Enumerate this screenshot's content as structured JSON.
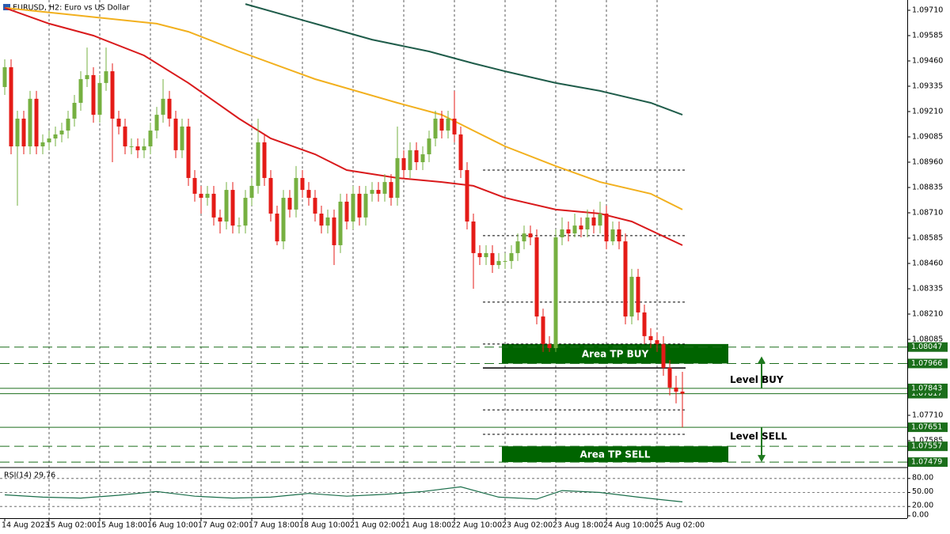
{
  "chart_data": {
    "type": "candlestick",
    "title": "EURUSD, H2:  Euro vs US Dollar",
    "xlim": [
      -0.75,
      142.5
    ],
    "xticks": [
      {
        "value": 0,
        "label": "14 Aug 2023"
      },
      {
        "value": 7,
        "label": "15 Aug 02:00"
      },
      {
        "value": 15,
        "label": "15 Aug 18:00"
      },
      {
        "value": 23,
        "label": "16 Aug 10:00"
      },
      {
        "value": 31,
        "label": "17 Aug 02:00"
      },
      {
        "value": 39,
        "label": "17 Aug 18:00"
      },
      {
        "value": 47,
        "label": "18 Aug 10:00"
      },
      {
        "value": 55,
        "label": "21 Aug 02:00"
      },
      {
        "value": 63,
        "label": "21 Aug 18:00"
      },
      {
        "value": 71,
        "label": "22 Aug 10:00"
      },
      {
        "value": 79,
        "label": "23 Aug 02:00"
      },
      {
        "value": 87,
        "label": "23 Aug 18:00"
      },
      {
        "value": 95,
        "label": "24 Aug 10:00"
      },
      {
        "value": 103,
        "label": "25 Aug 02:00"
      }
    ],
    "ylim": [
      1.07456,
      1.09753
    ],
    "yticks": [
      {
        "value": 1.0971,
        "label": "1.09710"
      },
      {
        "value": 1.09585,
        "label": "1.09585"
      },
      {
        "value": 1.0946,
        "label": "1.09460"
      },
      {
        "value": 1.09335,
        "label": "1.09335"
      },
      {
        "value": 1.0921,
        "label": "1.09210"
      },
      {
        "value": 1.09085,
        "label": "1.09085"
      },
      {
        "value": 1.0896,
        "label": "1.08960"
      },
      {
        "value": 1.08835,
        "label": "1.08835"
      },
      {
        "value": 1.0871,
        "label": "1.08710"
      },
      {
        "value": 1.08585,
        "label": "1.08585"
      },
      {
        "value": 1.0846,
        "label": "1.08460"
      },
      {
        "value": 1.08335,
        "label": "1.08335"
      },
      {
        "value": 1.0821,
        "label": "1.08210"
      },
      {
        "value": 1.08085,
        "label": "1.08085"
      },
      {
        "value": 1.0771,
        "label": "1.07710"
      },
      {
        "value": 1.07585,
        "label": "1.07585"
      }
    ],
    "up_color": "#76b041",
    "down_color": "#e41b17",
    "open": [
      1.09331,
      1.09429,
      1.09038,
      1.09175,
      1.09038,
      1.09273,
      1.09038,
      1.09058,
      1.09077,
      1.09097,
      1.09116,
      1.09175,
      1.09253,
      1.0937,
      1.0939,
      1.09194,
      1.09351,
      1.09409,
      1.09175,
      1.09136,
      1.09038,
      1.09038,
      1.09019,
      1.09038,
      1.09116,
      1.09194,
      1.09273,
      1.09175,
      1.09019,
      1.09136,
      1.08882,
      1.08804,
      1.08784,
      1.08804,
      1.08687,
      1.08667,
      1.08823,
      1.08647,
      1.08647,
      1.08784,
      1.08843,
      1.09058,
      1.08882,
      1.08706,
      1.08569,
      1.08784,
      1.08726,
      1.08882,
      1.08823,
      1.08784,
      1.08706,
      1.08647,
      1.08687,
      1.0855,
      1.08765,
      1.08667,
      1.08804,
      1.08687,
      1.08804,
      1.08823,
      1.08804,
      1.08862,
      1.08784,
      1.0898,
      1.08921,
      1.09019,
      1.0896,
      1.08999,
      1.09077,
      1.09175,
      1.09116,
      1.09175,
      1.09097,
      1.08921,
      1.08667,
      1.08511,
      1.08491,
      1.08511,
      1.08452,
      1.08472,
      1.08472,
      1.08511,
      1.08569,
      1.08608,
      1.08589,
      1.08198,
      1.08062,
      1.08042,
      1.08589,
      1.08628,
      1.08608,
      1.08647,
      1.08628,
      1.08687,
      1.08647,
      1.08706,
      1.08569,
      1.08628,
      1.08569,
      1.08198,
      1.08394,
      1.08218,
      1.08101,
      1.08081,
      1.08062,
      1.07944,
      1.07847,
      1.07827
    ],
    "high": [
      1.09468,
      1.09468,
      1.09214,
      1.09214,
      1.09312,
      1.09312,
      1.09097,
      1.09116,
      1.09136,
      1.09155,
      1.09214,
      1.09292,
      1.09409,
      1.09526,
      1.09429,
      1.0939,
      1.09526,
      1.09448,
      1.09214,
      1.09175,
      1.09077,
      1.09077,
      1.09077,
      1.09155,
      1.09233,
      1.0937,
      1.09312,
      1.09214,
      1.09175,
      1.09175,
      1.08921,
      1.08843,
      1.08843,
      1.08843,
      1.08726,
      1.08862,
      1.08862,
      1.08687,
      1.08823,
      1.08882,
      1.09175,
      1.09097,
      1.08921,
      1.08745,
      1.08823,
      1.08823,
      1.08941,
      1.08921,
      1.08862,
      1.08823,
      1.08745,
      1.08726,
      1.08726,
      1.08804,
      1.08804,
      1.08843,
      1.08843,
      1.08843,
      1.08862,
      1.08862,
      1.08901,
      1.08901,
      1.09136,
      1.09019,
      1.09058,
      1.09058,
      1.09038,
      1.09116,
      1.09214,
      1.09214,
      1.09214,
      1.09312,
      1.09136,
      1.0896,
      1.08706,
      1.0855,
      1.0855,
      1.0855,
      1.08511,
      1.08511,
      1.0855,
      1.08608,
      1.08647,
      1.08647,
      1.08628,
      1.08237,
      1.08101,
      1.08628,
      1.08687,
      1.08667,
      1.08706,
      1.08687,
      1.08726,
      1.08726,
      1.08765,
      1.08745,
      1.08667,
      1.08667,
      1.08608,
      1.08433,
      1.08433,
      1.08257,
      1.0814,
      1.0812,
      1.08101,
      1.07983,
      1.07905,
      1.07925
    ],
    "low": [
      1.09292,
      1.08999,
      1.08745,
      1.08999,
      1.08999,
      1.08999,
      1.08999,
      1.09019,
      1.09038,
      1.09058,
      1.09077,
      1.09136,
      1.09214,
      1.09331,
      1.09155,
      1.09155,
      1.09312,
      1.0896,
      1.09097,
      1.08999,
      1.08999,
      1.0898,
      1.0898,
      1.08999,
      1.09077,
      1.09155,
      1.09136,
      1.0898,
      1.0898,
      1.08843,
      1.08765,
      1.08706,
      1.08745,
      1.08647,
      1.08608,
      1.08628,
      1.08608,
      1.08608,
      1.08608,
      1.08745,
      1.08804,
      1.08843,
      1.08667,
      1.0855,
      1.0853,
      1.08687,
      1.08687,
      1.08784,
      1.08745,
      1.08667,
      1.08608,
      1.08608,
      1.08452,
      1.08511,
      1.08628,
      1.08628,
      1.08647,
      1.08647,
      1.08765,
      1.08765,
      1.08765,
      1.08745,
      1.08745,
      1.08882,
      1.08882,
      1.08921,
      1.08921,
      1.0896,
      1.09038,
      1.09077,
      1.09077,
      1.09058,
      1.08882,
      1.08628,
      1.08335,
      1.08452,
      1.08452,
      1.08413,
      1.08433,
      1.08433,
      1.08433,
      1.08472,
      1.0853,
      1.0855,
      1.08159,
      1.08023,
      1.08023,
      1.08023,
      1.0855,
      1.08569,
      1.08589,
      1.08589,
      1.08589,
      1.08608,
      1.08608,
      1.0853,
      1.0855,
      1.0853,
      1.08159,
      1.08159,
      1.08179,
      1.08062,
      1.08042,
      1.08023,
      1.07905,
      1.07808,
      1.07769,
      1.07651
    ],
    "close": [
      1.09429,
      1.09038,
      1.09175,
      1.09038,
      1.09273,
      1.09038,
      1.09058,
      1.09077,
      1.09097,
      1.09116,
      1.09175,
      1.09253,
      1.0937,
      1.0939,
      1.09194,
      1.09351,
      1.09409,
      1.09175,
      1.09136,
      1.09038,
      1.09038,
      1.09019,
      1.09038,
      1.09116,
      1.09194,
      1.09273,
      1.09175,
      1.09019,
      1.09136,
      1.08882,
      1.08804,
      1.08784,
      1.08804,
      1.08687,
      1.08667,
      1.08823,
      1.08647,
      1.08647,
      1.08784,
      1.08843,
      1.09058,
      1.08882,
      1.08706,
      1.08569,
      1.08784,
      1.08726,
      1.08882,
      1.08823,
      1.08784,
      1.08706,
      1.08647,
      1.08687,
      1.0855,
      1.08765,
      1.08667,
      1.08804,
      1.08687,
      1.08804,
      1.08823,
      1.08804,
      1.08862,
      1.08784,
      1.0898,
      1.08921,
      1.09019,
      1.0896,
      1.08999,
      1.09077,
      1.09175,
      1.09116,
      1.09175,
      1.09097,
      1.08921,
      1.08667,
      1.08511,
      1.08491,
      1.08511,
      1.08452,
      1.08472,
      1.08472,
      1.08511,
      1.08569,
      1.08608,
      1.08589,
      1.08198,
      1.08062,
      1.08042,
      1.08589,
      1.08628,
      1.08608,
      1.08647,
      1.08628,
      1.08687,
      1.08647,
      1.08706,
      1.08569,
      1.08628,
      1.08569,
      1.08198,
      1.08394,
      1.08218,
      1.08101,
      1.08081,
      1.08062,
      1.07944,
      1.07847,
      1.07827,
      1.07817
    ],
    "series": [
      {
        "color": "#1f5c4a",
        "x": [
          38,
          49,
          58,
          67,
          74,
          79,
          87,
          94,
          102,
          107
        ],
        "values": [
          1.09741,
          1.09644,
          1.09565,
          1.09507,
          1.09448,
          1.09409,
          1.09351,
          1.09312,
          1.09253,
          1.09194
        ]
      },
      {
        "color": "#f2b01e",
        "x": [
          0,
          12,
          24,
          29,
          37,
          49,
          62,
          69,
          74,
          79,
          87,
          94,
          102,
          107
        ],
        "values": [
          1.09722,
          1.09683,
          1.09644,
          1.09604,
          1.09507,
          1.0937,
          1.09253,
          1.09194,
          1.09116,
          1.09038,
          1.08941,
          1.08862,
          1.08804,
          1.08726
        ]
      },
      {
        "color": "#d91a1c",
        "x": [
          0,
          7,
          14,
          22,
          29,
          37,
          42,
          49,
          54,
          62,
          69,
          74,
          79,
          87,
          94,
          99,
          107
        ],
        "values": [
          1.09722,
          1.09644,
          1.09585,
          1.09487,
          1.09351,
          1.09175,
          1.09077,
          1.08999,
          1.08921,
          1.08882,
          1.08862,
          1.08843,
          1.08784,
          1.08726,
          1.08706,
          1.08667,
          1.0855
        ]
      }
    ],
    "levels": [
      {
        "value": 1.08047,
        "style": "dashed"
      },
      {
        "value": 1.07966,
        "style": "dashed"
      },
      {
        "value": 1.07817,
        "style": "solid"
      },
      {
        "value": 1.07843,
        "style": "solid"
      },
      {
        "value": 1.07651,
        "style": "solid"
      },
      {
        "value": 1.07557,
        "style": "dashed"
      },
      {
        "value": 1.07479,
        "style": "dashed"
      }
    ],
    "level_color": "#1b6e1b",
    "short_levels_x": [
      75.5,
      107.5
    ],
    "short_levels": [
      {
        "value": 1.08921,
        "style": "dotted"
      },
      {
        "value": 1.08597,
        "style": "dotted"
      },
      {
        "value": 1.08269,
        "style": "dotted"
      },
      {
        "value": 1.08062,
        "style": "dotted"
      },
      {
        "value": 1.07944,
        "style": "solid"
      },
      {
        "value": 1.07737,
        "style": "dotted"
      },
      {
        "value": 1.07616,
        "style": "dotted"
      }
    ],
    "zones": [
      {
        "label": "Area TP BUY",
        "range": [
          1.08062,
          1.07966
        ],
        "x_range": [
          78.5,
          114.25
        ],
        "color": "#006400"
      },
      {
        "label": "Area TP SELL",
        "range": [
          1.07557,
          1.07479
        ],
        "x_range": [
          78.5,
          114.25
        ],
        "color": "#006400"
      }
    ],
    "annotations": [
      {
        "text": "Level BUY",
        "arrow": [
          1.07843,
          1.08001
        ]
      },
      {
        "text": "Level SELL",
        "arrow": [
          1.07651,
          1.07479
        ]
      }
    ],
    "annotation_color": "#1e7a1e",
    "rsi": {
      "title": "RSI(14) 29.76",
      "ylim": [
        0,
        100
      ],
      "yticks": [
        {
          "value": 80,
          "label": "80.00"
        },
        {
          "value": 50,
          "label": "50.00"
        },
        {
          "value": 20,
          "label": "20.00"
        },
        {
          "value": 0,
          "label": "0.00"
        }
      ],
      "levels": [
        80,
        50,
        20
      ],
      "color": "#1a6e4a",
      "x": [
        0,
        6,
        12,
        18,
        24,
        30,
        36,
        42,
        48,
        54,
        60,
        66,
        72,
        78,
        84,
        88,
        94,
        100,
        104,
        107
      ],
      "values": [
        45,
        40,
        38,
        44,
        52,
        42,
        38,
        40,
        48,
        42,
        46,
        52,
        62,
        40,
        36,
        54,
        50,
        40,
        34,
        29.76
      ]
    }
  }
}
